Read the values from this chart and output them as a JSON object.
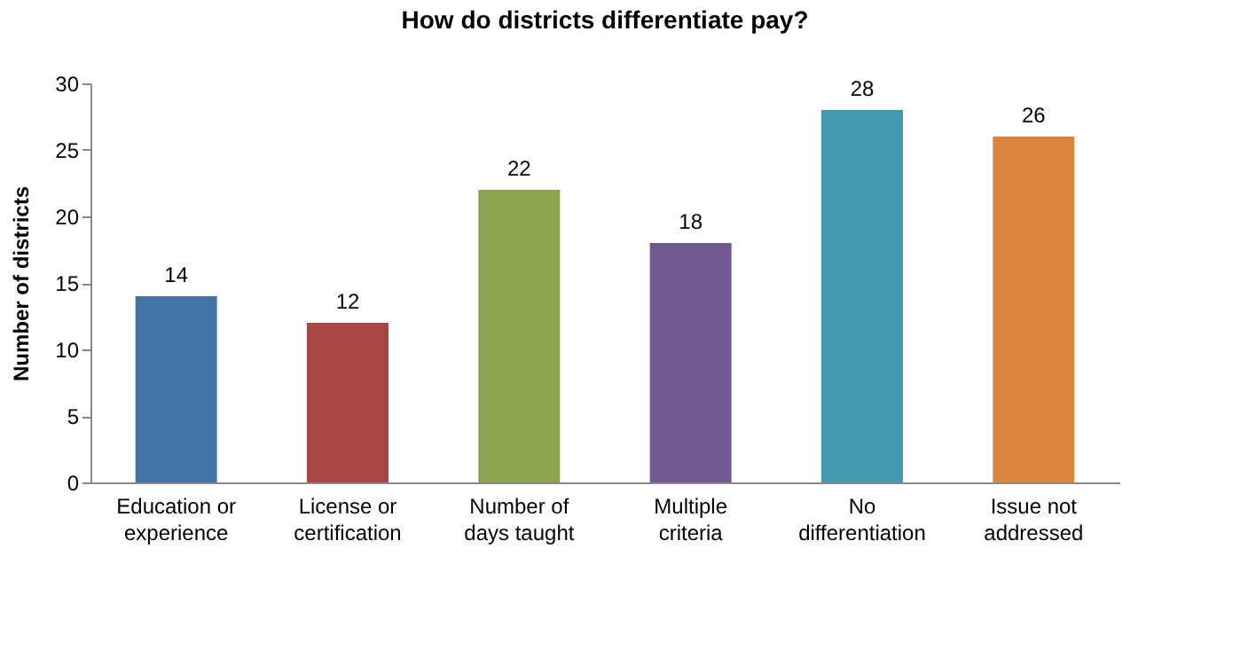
{
  "chart_data": {
    "type": "bar",
    "title": "How do districts differentiate pay?",
    "ylabel": "Number of districts",
    "categories": [
      "Education or\nexperience",
      "License or\ncertification",
      "Number of\ndays taught",
      "Multiple\ncriteria",
      "No\ndifferentiation",
      "Issue not\naddressed"
    ],
    "values": [
      14,
      12,
      22,
      18,
      28,
      26
    ],
    "colors": [
      "#4572a7",
      "#aa4643",
      "#89a54e",
      "#71588f",
      "#4198af",
      "#db843d"
    ],
    "ylim": [
      0,
      30
    ],
    "yticks": [
      0,
      5,
      10,
      15,
      20,
      25,
      30
    ],
    "grid": false,
    "data_labels": true
  }
}
